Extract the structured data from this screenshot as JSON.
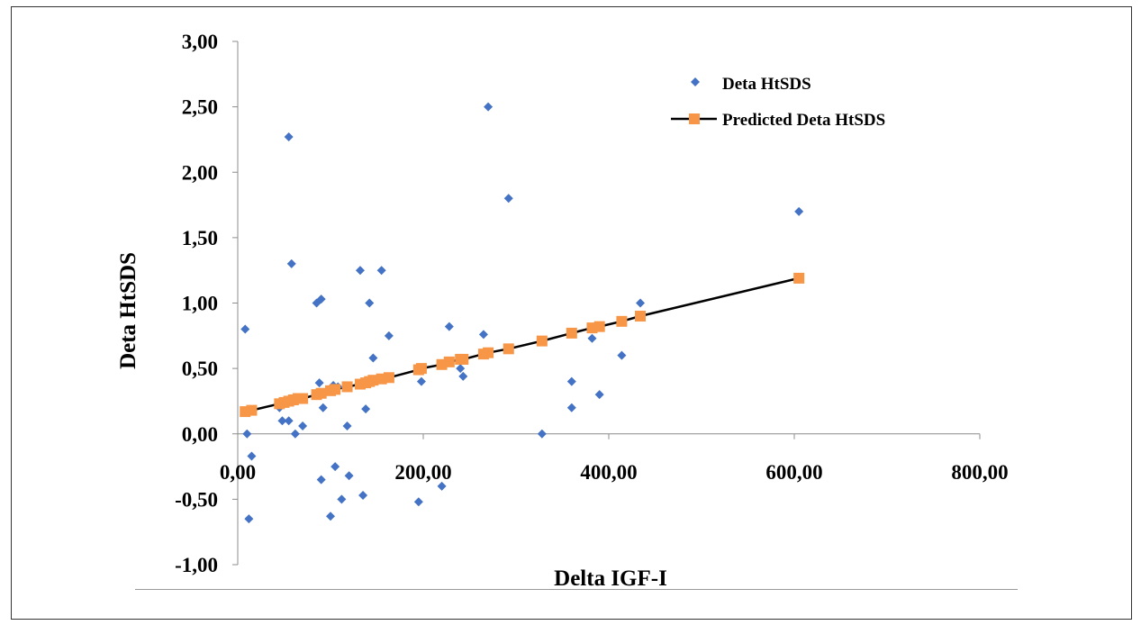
{
  "chart_data": {
    "type": "scatter",
    "xlabel": "Delta IGF-I",
    "ylabel": "Deta HtSDS",
    "xlim": [
      0,
      800
    ],
    "ylim": [
      -1,
      3
    ],
    "x_ticks": [
      "0,00",
      "200,00",
      "400,00",
      "600,00",
      "800,00"
    ],
    "y_ticks": [
      "3,00",
      "2,50",
      "2,00",
      "1,50",
      "1,00",
      "0,50",
      "0,00",
      "-0,50",
      "-1,00"
    ],
    "legend_position": "top-right",
    "grid": false,
    "series": [
      {
        "name": "Deta HtSDS",
        "marker": "diamond",
        "color": "#4472C4",
        "points": [
          [
            8,
            0.8
          ],
          [
            10,
            0.0
          ],
          [
            12,
            -0.65
          ],
          [
            15,
            -0.17
          ],
          [
            45,
            0.2
          ],
          [
            48,
            0.1
          ],
          [
            55,
            0.1
          ],
          [
            55,
            2.27
          ],
          [
            58,
            1.3
          ],
          [
            62,
            0.0
          ],
          [
            70,
            0.06
          ],
          [
            85,
            1.0
          ],
          [
            88,
            0.39
          ],
          [
            90,
            1.03
          ],
          [
            90,
            -0.35
          ],
          [
            92,
            0.2
          ],
          [
            100,
            -0.63
          ],
          [
            103,
            0.37
          ],
          [
            105,
            -0.25
          ],
          [
            108,
            0.36
          ],
          [
            112,
            -0.5
          ],
          [
            118,
            0.06
          ],
          [
            120,
            -0.32
          ],
          [
            132,
            1.25
          ],
          [
            135,
            -0.47
          ],
          [
            138,
            0.19
          ],
          [
            142,
            1.0
          ],
          [
            146,
            0.58
          ],
          [
            155,
            1.25
          ],
          [
            163,
            0.75
          ],
          [
            195,
            -0.52
          ],
          [
            198,
            0.4
          ],
          [
            220,
            -0.4
          ],
          [
            228,
            0.82
          ],
          [
            240,
            0.5
          ],
          [
            243,
            0.44
          ],
          [
            265,
            0.76
          ],
          [
            270,
            2.5
          ],
          [
            292,
            1.8
          ],
          [
            328,
            0.0
          ],
          [
            360,
            0.4
          ],
          [
            360,
            0.2
          ],
          [
            382,
            0.73
          ],
          [
            390,
            0.3
          ],
          [
            414,
            0.6
          ],
          [
            434,
            1.0
          ],
          [
            605,
            1.7
          ]
        ]
      },
      {
        "name": "Predicted Deta HtSDS",
        "marker": "square",
        "color": "#F79646",
        "line_color": "#000000",
        "points": [
          [
            8,
            0.17
          ],
          [
            15,
            0.18
          ],
          [
            45,
            0.23
          ],
          [
            50,
            0.24
          ],
          [
            55,
            0.25
          ],
          [
            60,
            0.26
          ],
          [
            65,
            0.27
          ],
          [
            70,
            0.27
          ],
          [
            85,
            0.3
          ],
          [
            90,
            0.31
          ],
          [
            100,
            0.33
          ],
          [
            105,
            0.34
          ],
          [
            118,
            0.36
          ],
          [
            132,
            0.38
          ],
          [
            138,
            0.39
          ],
          [
            142,
            0.4
          ],
          [
            146,
            0.41
          ],
          [
            155,
            0.42
          ],
          [
            163,
            0.43
          ],
          [
            195,
            0.49
          ],
          [
            198,
            0.5
          ],
          [
            220,
            0.53
          ],
          [
            228,
            0.55
          ],
          [
            240,
            0.57
          ],
          [
            243,
            0.57
          ],
          [
            265,
            0.61
          ],
          [
            270,
            0.62
          ],
          [
            292,
            0.65
          ],
          [
            328,
            0.71
          ],
          [
            360,
            0.77
          ],
          [
            382,
            0.81
          ],
          [
            390,
            0.82
          ],
          [
            414,
            0.86
          ],
          [
            434,
            0.9
          ],
          [
            605,
            1.19
          ]
        ]
      }
    ]
  }
}
